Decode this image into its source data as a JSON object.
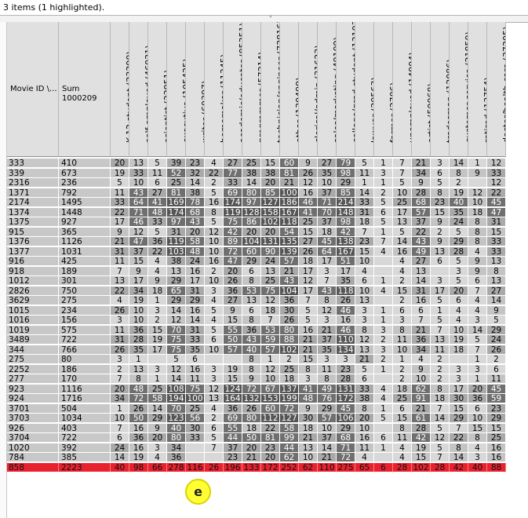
{
  "status_text": "3 items (1 highlighted).",
  "splitter_grip": "\"",
  "header": {
    "id_label": "Movie ID \\...",
    "sum_label": "Sum",
    "sum_value": "1000209"
  },
  "occupations": [
    "K-12 student (23290)",
    "self-employed (46021)",
    "scientist (22951)",
    "executive (105425)",
    "writer (60397)",
    "homemaker (11345)",
    "academic/educator (85351)",
    "programmer (57214)",
    "technician/engineer (72816)",
    "other (130499)",
    "clerical/admin (31623)",
    "sales/marketing (49109)",
    "college/grad student (131032)",
    "lawyer (20563)",
    "farmer (2706)",
    "unemployed (14904)",
    "artist (50068)",
    "tradesman (12086)",
    "customer service (21850)",
    "retired (13754)",
    "doctor/health care (37205)"
  ],
  "rows": [
    {
      "id": "333",
      "sum": "410",
      "cells": [
        "20",
        "13",
        "5",
        "39",
        "23",
        "4",
        "27",
        "25",
        "15",
        "60",
        "9",
        "27",
        "79",
        "5",
        "1",
        "7",
        "21",
        "3",
        "14",
        "1",
        "12"
      ]
    },
    {
      "id": "339",
      "sum": "673",
      "cells": [
        "19",
        "33",
        "11",
        "52",
        "32",
        "22",
        "77",
        "38",
        "38",
        "81",
        "26",
        "35",
        "98",
        "11",
        "3",
        "7",
        "34",
        "6",
        "8",
        "9",
        "33"
      ]
    },
    {
      "id": "2316",
      "sum": "236",
      "cells": [
        "5",
        "10",
        "6",
        "25",
        "14",
        "2",
        "33",
        "14",
        "20",
        "21",
        "12",
        "10",
        "29",
        "1",
        "1",
        "5",
        "9",
        "5",
        "2",
        "",
        "12"
      ]
    },
    {
      "id": "1371",
      "sum": "792",
      "cells": [
        "11",
        "43",
        "27",
        "81",
        "38",
        "5",
        "69",
        "80",
        "85",
        "100",
        "16",
        "37",
        "85",
        "14",
        "2",
        "10",
        "28",
        "8",
        "19",
        "12",
        "22"
      ]
    },
    {
      "id": "2174",
      "sum": "1495",
      "cells": [
        "33",
        "64",
        "41",
        "169",
        "78",
        "16",
        "174",
        "97",
        "127",
        "186",
        "46",
        "71",
        "214",
        "33",
        "5",
        "25",
        "68",
        "23",
        "40",
        "10",
        "45"
      ]
    },
    {
      "id": "1374",
      "sum": "1448",
      "cells": [
        "22",
        "71",
        "48",
        "174",
        "68",
        "8",
        "119",
        "128",
        "158",
        "167",
        "41",
        "70",
        "148",
        "31",
        "6",
        "17",
        "57",
        "15",
        "35",
        "18",
        "47"
      ]
    },
    {
      "id": "1375",
      "sum": "927",
      "cells": [
        "17",
        "46",
        "33",
        "97",
        "43",
        "5",
        "75",
        "86",
        "102",
        "118",
        "25",
        "37",
        "98",
        "18",
        "5",
        "13",
        "37",
        "9",
        "24",
        "8",
        "31"
      ]
    },
    {
      "id": "915",
      "sum": "365",
      "cells": [
        "9",
        "12",
        "5",
        "31",
        "20",
        "12",
        "42",
        "20",
        "20",
        "54",
        "15",
        "18",
        "42",
        "7",
        "1",
        "5",
        "22",
        "2",
        "5",
        "8",
        "15"
      ]
    },
    {
      "id": "1376",
      "sum": "1126",
      "cells": [
        "21",
        "47",
        "36",
        "119",
        "58",
        "10",
        "89",
        "104",
        "131",
        "135",
        "27",
        "45",
        "138",
        "23",
        "7",
        "14",
        "43",
        "9",
        "29",
        "8",
        "33"
      ]
    },
    {
      "id": "1377",
      "sum": "1031",
      "cells": [
        "31",
        "37",
        "22",
        "103",
        "48",
        "10",
        "72",
        "60",
        "90",
        "139",
        "26",
        "64",
        "167",
        "15",
        "4",
        "16",
        "49",
        "13",
        "28",
        "4",
        "33"
      ]
    },
    {
      "id": "916",
      "sum": "425",
      "cells": [
        "11",
        "15",
        "4",
        "38",
        "24",
        "16",
        "47",
        "29",
        "24",
        "57",
        "18",
        "17",
        "51",
        "10",
        "",
        "4",
        "27",
        "6",
        "5",
        "9",
        "13"
      ]
    },
    {
      "id": "918",
      "sum": "189",
      "cells": [
        "7",
        "9",
        "4",
        "13",
        "16",
        "2",
        "20",
        "6",
        "13",
        "21",
        "17",
        "3",
        "17",
        "4",
        "",
        "4",
        "13",
        "",
        "3",
        "9",
        "8"
      ]
    },
    {
      "id": "1012",
      "sum": "301",
      "cells": [
        "13",
        "17",
        "9",
        "29",
        "17",
        "10",
        "26",
        "8",
        "25",
        "43",
        "12",
        "7",
        "35",
        "6",
        "1",
        "2",
        "14",
        "3",
        "5",
        "6",
        "13"
      ]
    },
    {
      "id": "2826",
      "sum": "750",
      "cells": [
        "22",
        "34",
        "18",
        "65",
        "31",
        "3",
        "36",
        "53",
        "75",
        "104",
        "17",
        "43",
        "118",
        "10",
        "4",
        "15",
        "31",
        "17",
        "20",
        "7",
        "27"
      ]
    },
    {
      "id": "3629",
      "sum": "275",
      "cells": [
        "4",
        "19",
        "1",
        "29",
        "29",
        "4",
        "27",
        "13",
        "12",
        "36",
        "7",
        "8",
        "26",
        "13",
        "",
        "2",
        "16",
        "5",
        "6",
        "4",
        "14"
      ]
    },
    {
      "id": "1015",
      "sum": "234",
      "cells": [
        "26",
        "10",
        "3",
        "14",
        "16",
        "5",
        "9",
        "6",
        "18",
        "30",
        "5",
        "12",
        "46",
        "3",
        "1",
        "6",
        "6",
        "1",
        "4",
        "4",
        "9"
      ]
    },
    {
      "id": "1016",
      "sum": "156",
      "cells": [
        "3",
        "10",
        "2",
        "12",
        "14",
        "4",
        "15",
        "8",
        "7",
        "26",
        "5",
        "3",
        "16",
        "3",
        "1",
        "3",
        "7",
        "5",
        "4",
        "3",
        "5"
      ]
    },
    {
      "id": "1019",
      "sum": "575",
      "cells": [
        "11",
        "36",
        "15",
        "70",
        "31",
        "5",
        "55",
        "36",
        "53",
        "80",
        "16",
        "21",
        "46",
        "8",
        "3",
        "8",
        "21",
        "7",
        "10",
        "14",
        "29"
      ]
    },
    {
      "id": "3489",
      "sum": "722",
      "cells": [
        "31",
        "28",
        "19",
        "75",
        "33",
        "6",
        "50",
        "43",
        "59",
        "88",
        "21",
        "37",
        "110",
        "12",
        "2",
        "11",
        "36",
        "13",
        "19",
        "5",
        "24"
      ]
    },
    {
      "id": "344",
      "sum": "766",
      "cells": [
        "26",
        "35",
        "17",
        "75",
        "35",
        "10",
        "57",
        "40",
        "57",
        "102",
        "21",
        "35",
        "134",
        "13",
        "3",
        "10",
        "34",
        "11",
        "18",
        "7",
        "26"
      ]
    },
    {
      "id": "275",
      "sum": "80",
      "cells": [
        "3",
        "1",
        "",
        "5",
        "6",
        "",
        "",
        "8",
        "1",
        "2",
        "15",
        "3",
        "3",
        "21",
        "2",
        "1",
        "4",
        "2",
        "",
        "1",
        "2"
      ]
    },
    {
      "id": "2252",
      "sum": "186",
      "cells": [
        "2",
        "13",
        "3",
        "12",
        "16",
        "3",
        "19",
        "8",
        "12",
        "25",
        "8",
        "11",
        "23",
        "5",
        "1",
        "2",
        "9",
        "2",
        "3",
        "3",
        "6"
      ]
    },
    {
      "id": "277",
      "sum": "170",
      "cells": [
        "7",
        "8",
        "1",
        "14",
        "11",
        "3",
        "15",
        "9",
        "10",
        "18",
        "3",
        "8",
        "28",
        "6",
        "",
        "2",
        "10",
        "2",
        "3",
        "1",
        "11"
      ]
    },
    {
      "id": "923",
      "sum": "1116",
      "cells": [
        "20",
        "48",
        "25",
        "108",
        "75",
        "12",
        "124",
        "72",
        "67",
        "137",
        "41",
        "49",
        "131",
        "33",
        "4",
        "18",
        "62",
        "8",
        "17",
        "20",
        "45"
      ]
    },
    {
      "id": "924",
      "sum": "1716",
      "cells": [
        "34",
        "72",
        "58",
        "194",
        "100",
        "13",
        "164",
        "132",
        "153",
        "199",
        "48",
        "76",
        "172",
        "38",
        "4",
        "25",
        "91",
        "18",
        "30",
        "36",
        "59"
      ]
    },
    {
      "id": "3701",
      "sum": "504",
      "cells": [
        "1",
        "26",
        "14",
        "70",
        "25",
        "4",
        "36",
        "26",
        "60",
        "72",
        "9",
        "29",
        "45",
        "8",
        "1",
        "6",
        "21",
        "7",
        "15",
        "6",
        "23"
      ]
    },
    {
      "id": "3703",
      "sum": "1034",
      "cells": [
        "10",
        "50",
        "29",
        "123",
        "56",
        "2",
        "69",
        "80",
        "112",
        "127",
        "30",
        "57",
        "106",
        "20",
        "5",
        "15",
        "61",
        "14",
        "29",
        "10",
        "29"
      ]
    },
    {
      "id": "926",
      "sum": "403",
      "cells": [
        "7",
        "16",
        "9",
        "40",
        "30",
        "6",
        "55",
        "18",
        "22",
        "58",
        "18",
        "10",
        "29",
        "10",
        "",
        "8",
        "28",
        "5",
        "7",
        "15",
        "15"
      ]
    },
    {
      "id": "3704",
      "sum": "722",
      "cells": [
        "6",
        "36",
        "20",
        "80",
        "33",
        "5",
        "44",
        "50",
        "81",
        "99",
        "21",
        "37",
        "68",
        "16",
        "6",
        "11",
        "42",
        "12",
        "22",
        "8",
        "25"
      ]
    },
    {
      "id": "1020",
      "sum": "392",
      "cells": [
        "24",
        "16",
        "3",
        "34",
        "",
        "7",
        "37",
        "20",
        "23",
        "44",
        "13",
        "14",
        "71",
        "11",
        "1",
        "4",
        "19",
        "5",
        "8",
        "4",
        "16"
      ]
    },
    {
      "id": "784",
      "sum": "385",
      "cells": [
        "14",
        "19",
        "4",
        "36",
        "",
        "",
        "23",
        "21",
        "20",
        "62",
        "10",
        "21",
        "72",
        "4",
        "",
        "4",
        "15",
        "7",
        "14",
        "3",
        "16"
      ]
    },
    {
      "id": "858",
      "sum": "2223",
      "cells": [
        "40",
        "98",
        "66",
        "278",
        "116",
        "26",
        "196",
        "133",
        "172",
        "252",
        "62",
        "110",
        "275",
        "65",
        "6",
        "28",
        "102",
        "28",
        "42",
        "40",
        "88"
      ]
    }
  ],
  "highlight_id": "858",
  "marker_label": "e"
}
